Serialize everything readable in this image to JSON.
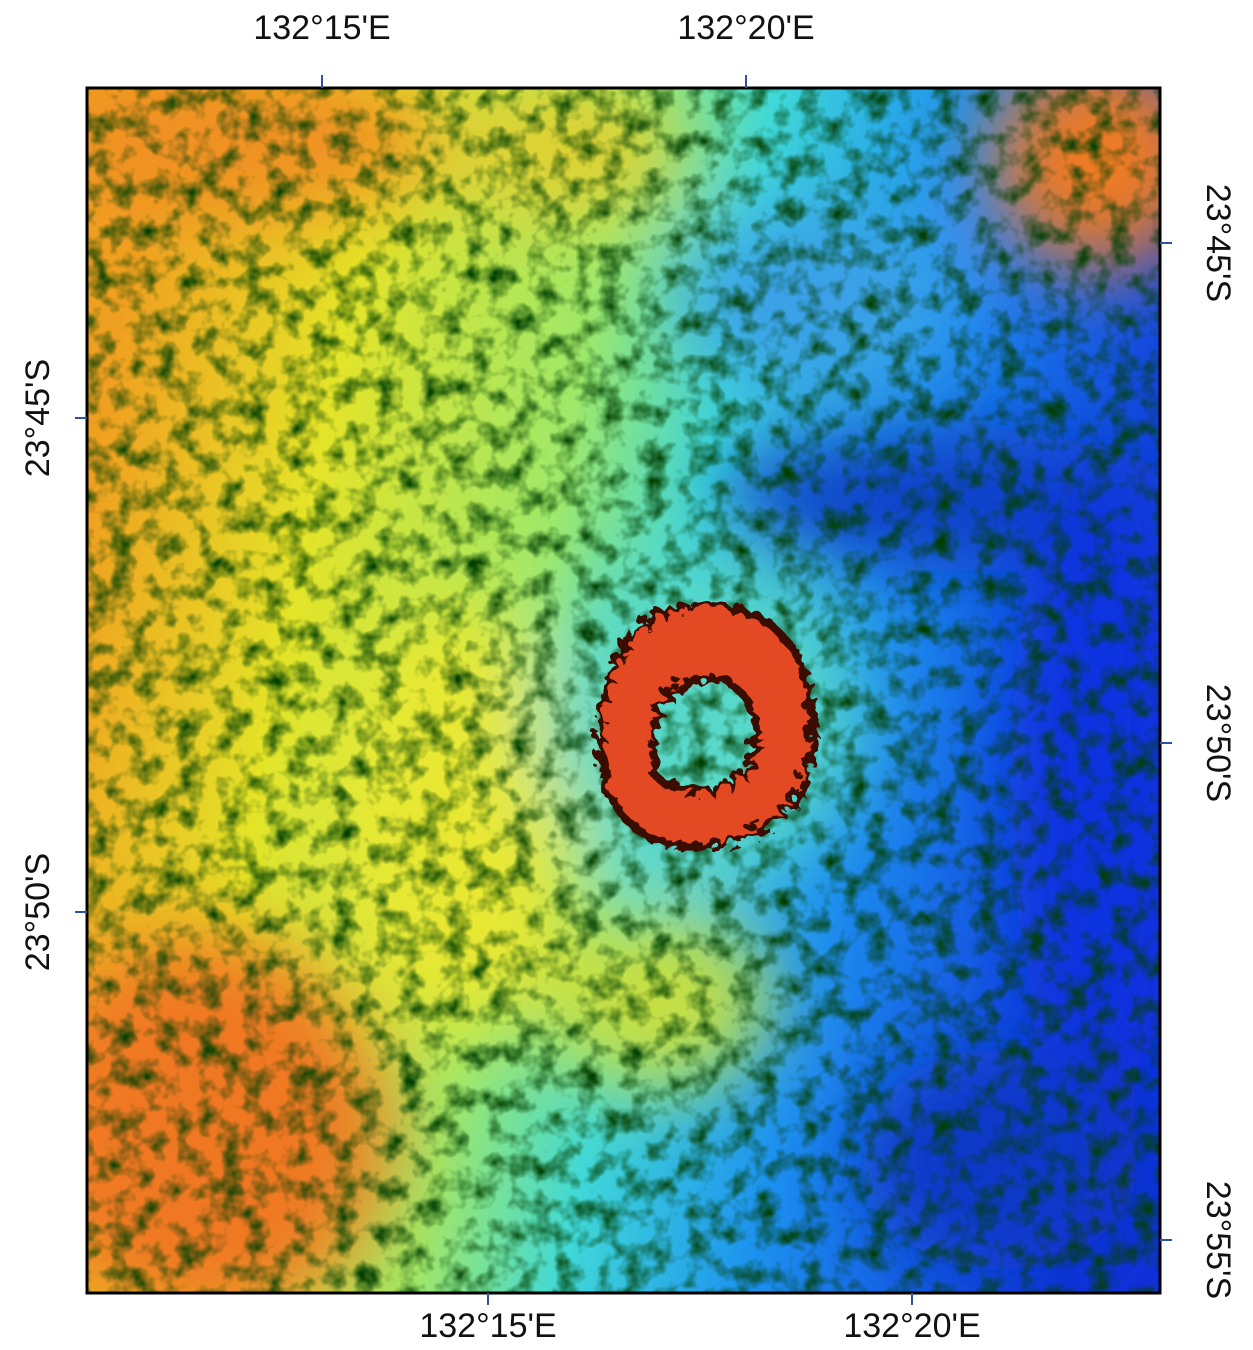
{
  "map": {
    "top_labels": [
      "132°15'E",
      "132°20'E"
    ],
    "bottom_labels": [
      "132°15'E",
      "132°20'E"
    ],
    "left_labels": [
      "23°45'S",
      "23°50'S"
    ],
    "right_labels": [
      "23°45'S",
      "23°50'S",
      "23°55'S"
    ]
  }
}
